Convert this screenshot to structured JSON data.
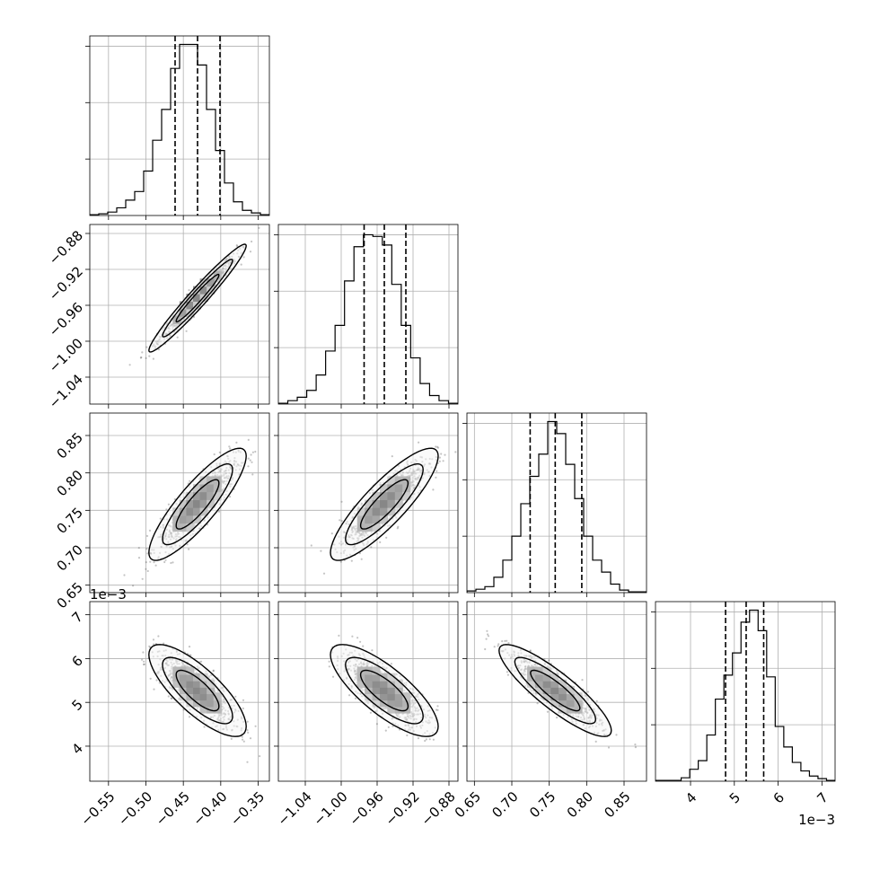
{
  "chart_data": {
    "type": "corner",
    "grid": true,
    "parameters": [
      {
        "range": [
          -0.575,
          -0.335
        ],
        "ticks": [
          -0.55,
          -0.5,
          -0.45,
          -0.4,
          -0.35
        ],
        "tick_labels": [
          "−0.55",
          "−0.50",
          "−0.45",
          "−0.40",
          "−0.35"
        ],
        "quantiles": [
          -0.461,
          -0.431,
          -0.401
        ],
        "hist_counts": [
          0.5,
          1,
          2,
          4.5,
          9,
          14,
          26,
          44,
          62,
          86,
          100,
          100,
          88,
          62,
          38,
          19,
          8,
          3,
          1.5,
          0.5
        ],
        "hist_max": 100,
        "offset_label": ""
      },
      {
        "range": [
          -1.07,
          -0.87
        ],
        "ticks": [
          -1.04,
          -1.0,
          -0.96,
          -0.92,
          -0.88
        ],
        "tick_labels": [
          "−1.04",
          "−1.00",
          "−0.96",
          "−0.92",
          "−0.88"
        ],
        "quantiles": [
          -0.9745,
          -0.952,
          -0.928
        ],
        "hist_counts": [
          0.5,
          2,
          4,
          8,
          17,
          31,
          46,
          72,
          92,
          99,
          98,
          93,
          70,
          46,
          27,
          12,
          5,
          2,
          0.5
        ],
        "hist_max": 100,
        "offset_label": ""
      },
      {
        "range": [
          0.64,
          0.88
        ],
        "ticks": [
          0.65,
          0.7,
          0.75,
          0.8,
          0.85
        ],
        "tick_labels": [
          "0.65",
          "0.70",
          "0.75",
          "0.80",
          "0.85"
        ],
        "quantiles": [
          0.7245,
          0.758,
          0.7935
        ],
        "hist_counts": [
          1,
          2,
          3.5,
          9,
          19,
          33,
          52,
          68,
          81,
          100,
          93,
          75,
          55,
          33,
          19,
          12,
          5,
          1.5,
          0.5,
          0.5
        ],
        "hist_max": 100,
        "offset_label": ""
      },
      {
        "range": [
          3.2,
          7.3
        ],
        "ticks": [
          4,
          5,
          6,
          7
        ],
        "tick_labels": [
          "4",
          "5",
          "6",
          "7"
        ],
        "quantiles": [
          4.8,
          5.27,
          5.67
        ],
        "hist_counts": [
          0.5,
          0.5,
          0.5,
          2,
          7,
          12,
          27,
          48,
          62,
          75,
          93,
          100,
          88,
          61,
          32,
          20,
          11,
          6,
          3,
          1.5,
          0.5
        ],
        "hist_max": 100,
        "offset_label": "1e−3"
      }
    ],
    "pairs": [
      {
        "x": 0,
        "y": 1,
        "center": [
          -0.431,
          -0.952
        ],
        "sd": [
          0.026,
          0.024
        ],
        "corr": 0.97
      },
      {
        "x": 0,
        "y": 2,
        "center": [
          -0.431,
          0.758
        ],
        "sd": [
          0.026,
          0.03
        ],
        "corr": 0.86
      },
      {
        "x": 1,
        "y": 2,
        "center": [
          -0.952,
          0.758
        ],
        "sd": [
          0.024,
          0.03
        ],
        "corr": 0.86
      },
      {
        "x": 0,
        "y": 3,
        "center": [
          -0.431,
          5.27
        ],
        "sd": [
          0.026,
          0.42
        ],
        "corr": -0.78
      },
      {
        "x": 1,
        "y": 3,
        "center": [
          -0.952,
          5.27
        ],
        "sd": [
          0.024,
          0.42
        ],
        "corr": -0.78
      },
      {
        "x": 2,
        "y": 3,
        "center": [
          0.758,
          5.27
        ],
        "sd": [
          0.03,
          0.42
        ],
        "corr": -0.87
      }
    ]
  }
}
